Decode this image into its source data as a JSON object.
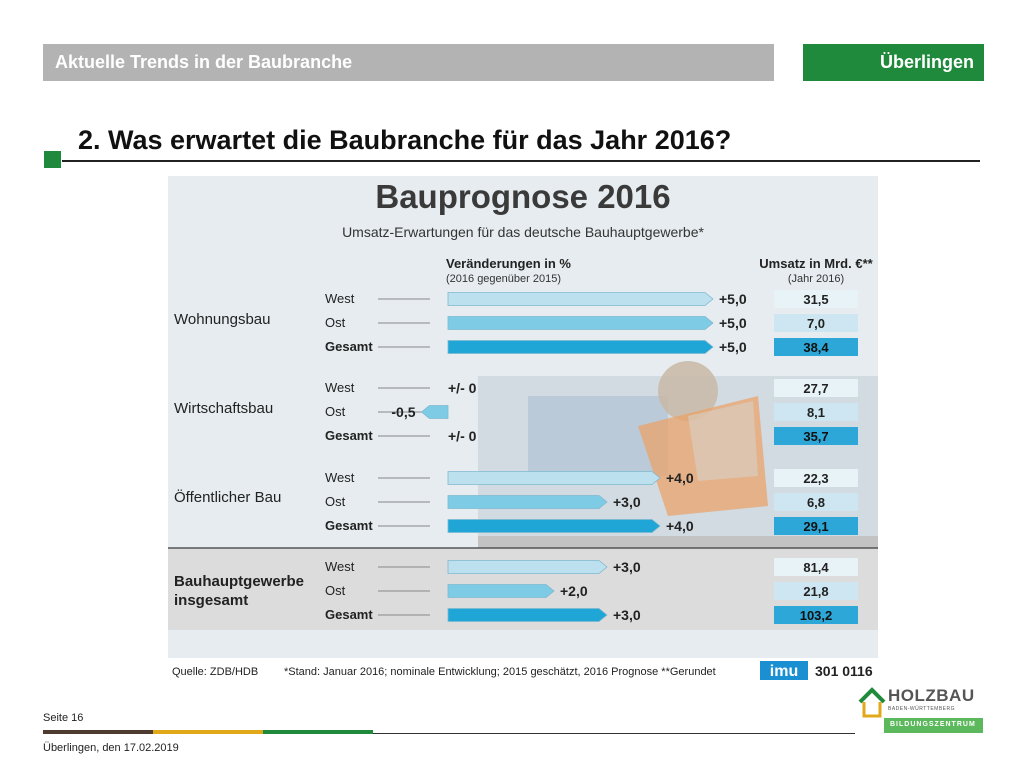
{
  "header": {
    "section": "Aktuelle Trends in der Baubranche",
    "location": "Überlingen"
  },
  "page_title": "2. Was erwartet die Baubranche für das Jahr 2016?",
  "footer": {
    "page": "Seite 16",
    "date": "Überlingen, den 17.02.2019"
  },
  "logo": {
    "name": "HOLZBAU",
    "sub": "BADEN-WÜRTTEMBERG",
    "bar": "BILDUNGSZENTRUM"
  },
  "colors": {
    "green": "#1f8a3b",
    "grey_bar": "#b3b3b3",
    "bar_light": "#bde0ee",
    "bar_mid": "#7ecbe6",
    "bar_dark": "#1fa6d6"
  },
  "chart_data": {
    "type": "bar",
    "title": "Bauprognose 2016",
    "subtitle": "Umsatz-Erwartungen für das deutsche Bauhauptgewerbe*",
    "change_header": "Veränderungen in %",
    "change_subheader": "(2016 gegenüber 2015)",
    "sales_header": "Umsatz in Mrd. €**",
    "sales_subheader": "(Jahr 2016)",
    "groups": [
      {
        "name": "Wohnungsbau",
        "rows": [
          {
            "label": "West",
            "change": 5.0,
            "change_label": "+5,0",
            "sales": "31,5"
          },
          {
            "label": "Ost",
            "change": 5.0,
            "change_label": "+5,0",
            "sales": "7,0"
          },
          {
            "label": "Gesamt",
            "change": 5.0,
            "change_label": "+5,0",
            "sales": "38,4"
          }
        ]
      },
      {
        "name": "Wirtschaftsbau",
        "rows": [
          {
            "label": "West",
            "change": 0,
            "change_label": "+/- 0",
            "sales": "27,7"
          },
          {
            "label": "Ost",
            "change": -0.5,
            "change_label": "-0,5",
            "sales": "8,1"
          },
          {
            "label": "Gesamt",
            "change": 0,
            "change_label": "+/- 0",
            "sales": "35,7"
          }
        ]
      },
      {
        "name": "Öffentlicher Bau",
        "rows": [
          {
            "label": "West",
            "change": 4.0,
            "change_label": "+4,0",
            "sales": "22,3"
          },
          {
            "label": "Ost",
            "change": 3.0,
            "change_label": "+3,0",
            "sales": "6,8"
          },
          {
            "label": "Gesamt",
            "change": 4.0,
            "change_label": "+4,0",
            "sales": "29,1"
          }
        ]
      },
      {
        "name": "Bauhauptgewerbe insgesamt",
        "name_lines": [
          "Bauhauptgewerbe",
          "insgesamt"
        ],
        "rows": [
          {
            "label": "West",
            "change": 3.0,
            "change_label": "+3,0",
            "sales": "81,4"
          },
          {
            "label": "Ost",
            "change": 2.0,
            "change_label": "+2,0",
            "sales": "21,8"
          },
          {
            "label": "Gesamt",
            "change": 3.0,
            "change_label": "+3,0",
            "sales": "103,2"
          }
        ]
      }
    ],
    "source": "Quelle: ZDB/HDB",
    "footnote": "*Stand: Januar 2016; nominale Entwicklung; 2015 geschätzt, 2016 Prognose   **Gerundet",
    "publisher": "imu",
    "publisher_id": "301 0116"
  }
}
